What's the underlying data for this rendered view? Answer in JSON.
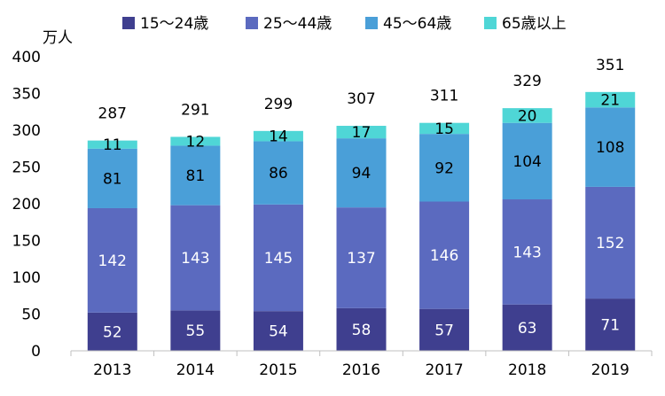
{
  "chart_data": {
    "type": "bar",
    "stacked": true,
    "unit_label": "万人",
    "categories": [
      "2013",
      "2014",
      "2015",
      "2016",
      "2017",
      "2018",
      "2019"
    ],
    "series": [
      {
        "name": "15～24歳",
        "color": "#3f3f8f",
        "label_color": "#ffffff",
        "values": [
          52,
          55,
          54,
          58,
          57,
          63,
          71
        ]
      },
      {
        "name": "25～44歳",
        "color": "#5b6abf",
        "label_color": "#ffffff",
        "values": [
          142,
          143,
          145,
          137,
          146,
          143,
          152
        ]
      },
      {
        "name": "45～64歳",
        "color": "#4a9fd8",
        "label_color": "#000000",
        "values": [
          81,
          81,
          86,
          94,
          92,
          104,
          108
        ]
      },
      {
        "name": "65歳以上",
        "color": "#4fd6d6",
        "label_color": "#000000",
        "values": [
          11,
          12,
          14,
          17,
          15,
          20,
          21
        ]
      }
    ],
    "totals": [
      287,
      291,
      299,
      307,
      311,
      329,
      351
    ],
    "ylim": [
      0,
      400
    ],
    "yticks": [
      0,
      50,
      100,
      150,
      200,
      250,
      300,
      350,
      400
    ],
    "grid": false,
    "legend": "top"
  }
}
